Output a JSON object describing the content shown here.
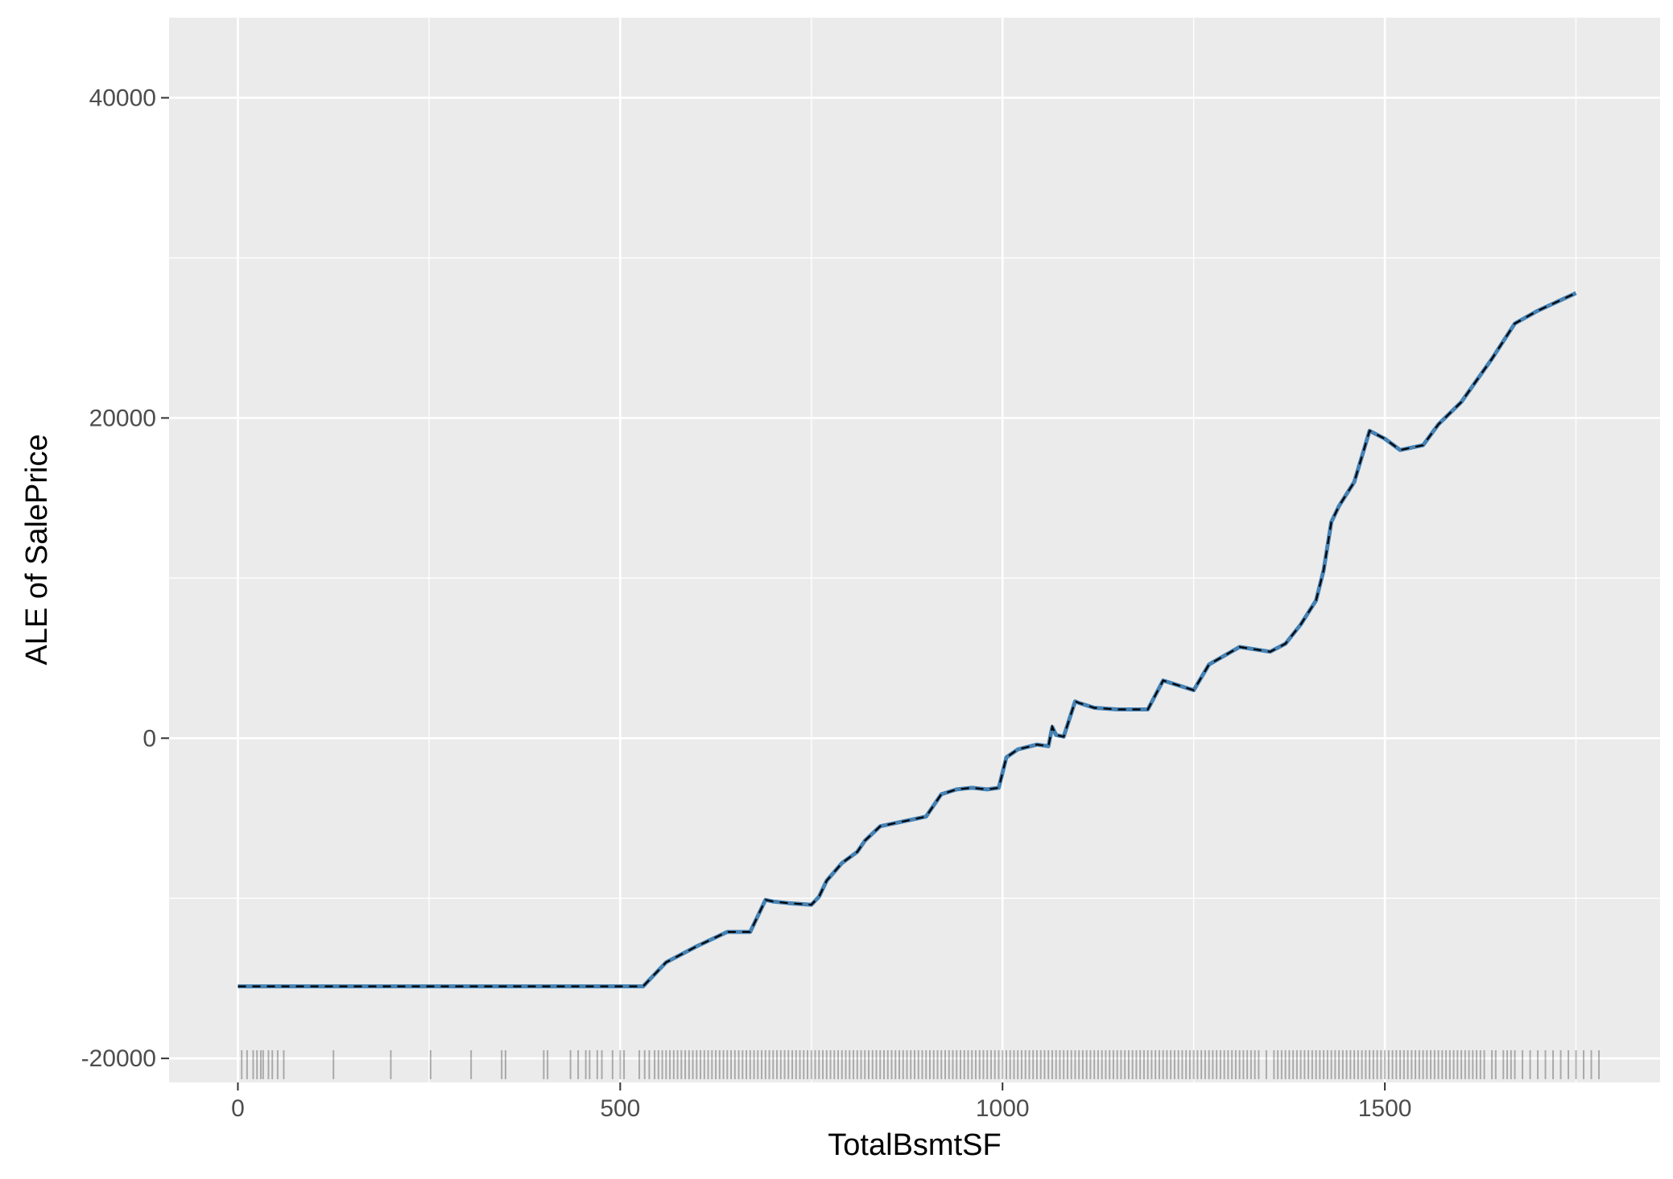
{
  "chart_data": {
    "type": "line",
    "title": "",
    "xlabel": "TotalBsmtSF",
    "ylabel": "ALE of SalePrice",
    "xlim": [
      -90,
      1860
    ],
    "ylim": [
      -21500,
      45000
    ],
    "x_ticks": [
      0,
      500,
      1000,
      1500
    ],
    "y_ticks": [
      -20000,
      0,
      20000,
      40000
    ],
    "x_tick_labels": [
      "0",
      "500",
      "1000",
      "1500"
    ],
    "y_tick_labels": [
      "-20000",
      "0",
      "20000",
      "40000"
    ],
    "grid": true,
    "legend": "none",
    "colors": {
      "panel_background": "#ebebeb",
      "gridline": "#ffffff",
      "series_line": "#4682b4",
      "dashed_overlay": "#000000",
      "rug": "#000000",
      "tick_label": "#4d4d4d",
      "axis_title": "#000000"
    },
    "series": [
      {
        "x": [
          0,
          50,
          100,
          150,
          200,
          250,
          300,
          350,
          400,
          450,
          500,
          530,
          560,
          600,
          640,
          670,
          690,
          700,
          720,
          750,
          760,
          770,
          790,
          810,
          820,
          840,
          860,
          880,
          900,
          920,
          940,
          960,
          980,
          995,
          1005,
          1020,
          1045,
          1060,
          1065,
          1070,
          1080,
          1095,
          1100,
          1120,
          1150,
          1190,
          1210,
          1250,
          1270,
          1310,
          1350,
          1370,
          1390,
          1410,
          1420,
          1430,
          1440,
          1460,
          1480,
          1500,
          1520,
          1550,
          1570,
          1600,
          1640,
          1670,
          1700,
          1750
        ],
        "values": [
          -15500,
          -15500,
          -15500,
          -15500,
          -15500,
          -15500,
          -15500,
          -15500,
          -15500,
          -15500,
          -15500,
          -15500,
          -14000,
          -13000,
          -12100,
          -12100,
          -10100,
          -10200,
          -10300,
          -10400,
          -9900,
          -8900,
          -7800,
          -7100,
          -6400,
          -5500,
          -5300,
          -5100,
          -4900,
          -3500,
          -3200,
          -3100,
          -3200,
          -3100,
          -1200,
          -700,
          -400,
          -500,
          700,
          200,
          100,
          2300,
          2200,
          1900,
          1800,
          1800,
          3600,
          3000,
          4600,
          5700,
          5400,
          5900,
          7100,
          8600,
          10500,
          13500,
          14500,
          16000,
          19200,
          18700,
          18000,
          18300,
          19600,
          21000,
          23700,
          25900,
          26700,
          27800
        ]
      }
    ],
    "rug_x": [
      5,
      12,
      20,
      25,
      30,
      33,
      40,
      45,
      52,
      60,
      125,
      200,
      252,
      305,
      345,
      350,
      400,
      405,
      435,
      445,
      455,
      460,
      470,
      476,
      490,
      500,
      505,
      525,
      532,
      538,
      545,
      550,
      555,
      560,
      565,
      570,
      575,
      580,
      585,
      590,
      595,
      600,
      605,
      610,
      615,
      620,
      625,
      630,
      635,
      640,
      645,
      650,
      655,
      660,
      665,
      670,
      675,
      680,
      685,
      690,
      695,
      700,
      705,
      710,
      715,
      720,
      725,
      730,
      735,
      740,
      745,
      750,
      755,
      760,
      765,
      770,
      775,
      780,
      785,
      790,
      795,
      800,
      805,
      810,
      815,
      820,
      825,
      830,
      835,
      840,
      845,
      850,
      855,
      860,
      865,
      870,
      875,
      880,
      885,
      890,
      895,
      900,
      905,
      910,
      915,
      920,
      925,
      930,
      935,
      940,
      945,
      950,
      955,
      960,
      965,
      970,
      975,
      980,
      985,
      990,
      995,
      1000,
      1005,
      1010,
      1015,
      1020,
      1025,
      1030,
      1035,
      1040,
      1045,
      1050,
      1055,
      1060,
      1065,
      1070,
      1075,
      1080,
      1085,
      1090,
      1095,
      1100,
      1105,
      1110,
      1115,
      1120,
      1125,
      1130,
      1135,
      1140,
      1145,
      1150,
      1155,
      1160,
      1165,
      1170,
      1175,
      1180,
      1185,
      1190,
      1195,
      1200,
      1205,
      1210,
      1215,
      1220,
      1225,
      1230,
      1235,
      1240,
      1245,
      1250,
      1255,
      1260,
      1265,
      1270,
      1275,
      1280,
      1285,
      1290,
      1295,
      1300,
      1305,
      1310,
      1315,
      1320,
      1325,
      1330,
      1335,
      1345,
      1355,
      1360,
      1365,
      1370,
      1375,
      1380,
      1385,
      1390,
      1395,
      1400,
      1405,
      1410,
      1415,
      1420,
      1425,
      1430,
      1435,
      1440,
      1445,
      1450,
      1455,
      1460,
      1465,
      1470,
      1475,
      1480,
      1485,
      1490,
      1495,
      1500,
      1505,
      1510,
      1515,
      1520,
      1525,
      1530,
      1535,
      1540,
      1545,
      1550,
      1555,
      1560,
      1565,
      1570,
      1575,
      1580,
      1585,
      1590,
      1595,
      1600,
      1605,
      1610,
      1615,
      1620,
      1625,
      1630,
      1640,
      1645,
      1655,
      1660,
      1665,
      1670,
      1680,
      1690,
      1700,
      1710,
      1720,
      1730,
      1740,
      1750,
      1760,
      1770,
      1780
    ]
  }
}
